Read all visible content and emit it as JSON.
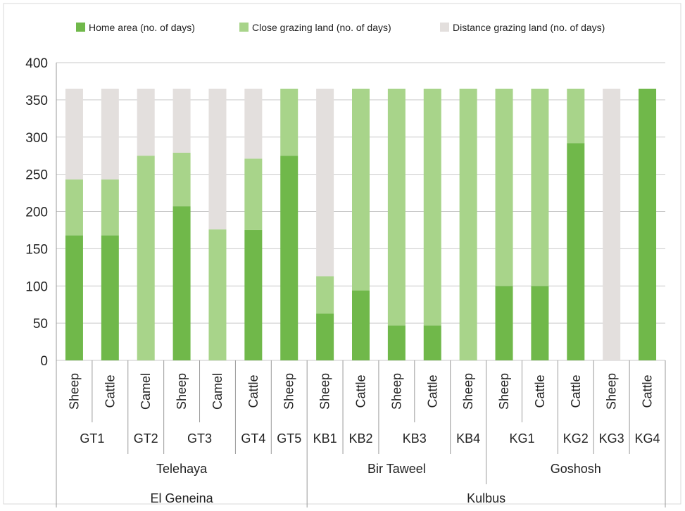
{
  "chart_data": {
    "type": "bar",
    "stacked": true,
    "legend_position": "top",
    "grid": true,
    "ylim": [
      0,
      400
    ],
    "yticks": [
      0,
      50,
      100,
      150,
      200,
      250,
      300,
      350,
      400
    ],
    "categories": [
      "Sheep",
      "Cattle",
      "Camel",
      "Sheep",
      "Camel",
      "Cattle",
      "Sheep",
      "Sheep",
      "Cattle",
      "Sheep",
      "Cattle",
      "Sheep",
      "Sheep",
      "Cattle",
      "Cattle",
      "Sheep",
      "Cattle"
    ],
    "group_level1": [
      {
        "label": "GT1",
        "span": 2
      },
      {
        "label": "GT2",
        "span": 1
      },
      {
        "label": "GT3",
        "span": 2
      },
      {
        "label": "GT4",
        "span": 1
      },
      {
        "label": "GT5",
        "span": 1
      },
      {
        "label": "KB1",
        "span": 1
      },
      {
        "label": "KB2",
        "span": 1
      },
      {
        "label": "KB3",
        "span": 2
      },
      {
        "label": "KB4",
        "span": 1
      },
      {
        "label": "KG1",
        "span": 2
      },
      {
        "label": "KG2",
        "span": 1
      },
      {
        "label": "KG3",
        "span": 1
      },
      {
        "label": "KG4",
        "span": 1
      }
    ],
    "group_level2": [
      {
        "label": "Telehaya",
        "span": 7
      },
      {
        "label": "Bir Taweel",
        "span": 5
      },
      {
        "label": "Goshosh",
        "span": 5
      }
    ],
    "group_level3": [
      {
        "label": "El Geneina",
        "span": 7
      },
      {
        "label": "Kulbus",
        "span": 10
      }
    ],
    "series": [
      {
        "name": "Home area (no. of days)",
        "color": "#70b84a",
        "values": [
          168,
          168,
          0,
          207,
          0,
          175,
          275,
          63,
          94,
          47,
          47,
          0,
          100,
          100,
          292,
          0,
          365
        ]
      },
      {
        "name": "Close grazing land (no. of days)",
        "color": "#a8d48a",
        "values": [
          75,
          75,
          275,
          72,
          176,
          96,
          90,
          50,
          271,
          318,
          318,
          365,
          265,
          265,
          73,
          0,
          0
        ]
      },
      {
        "name": "Distance grazing land (no. of days)",
        "color": "#e3dfdd",
        "values": [
          122,
          122,
          90,
          86,
          189,
          94,
          0,
          252,
          0,
          0,
          0,
          0,
          0,
          0,
          0,
          365,
          0
        ]
      }
    ]
  }
}
